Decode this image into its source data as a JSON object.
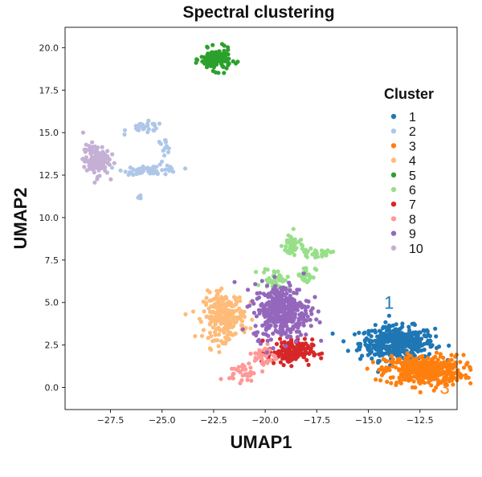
{
  "chart_data": {
    "type": "scatter",
    "title": "Spectral clustering",
    "xlabel": "UMAP1",
    "ylabel": "UMAP2",
    "xlim": [
      -29.7,
      -10.7
    ],
    "ylim": [
      -1.3,
      21.2
    ],
    "x_ticks": [
      -27.5,
      -25.0,
      -22.5,
      -20.0,
      -17.5,
      -15.0,
      -12.5
    ],
    "x_tick_labels": [
      "−27.5",
      "−25.0",
      "−22.5",
      "−20.0",
      "−17.5",
      "−15.0",
      "−12.5"
    ],
    "y_ticks": [
      0.0,
      2.5,
      5.0,
      7.5,
      10.0,
      12.5,
      15.0,
      17.5,
      20.0
    ],
    "y_tick_labels": [
      "0.0",
      "2.5",
      "5.0",
      "7.5",
      "10.0",
      "12.5",
      "15.0",
      "17.5",
      "20.0"
    ],
    "grid": false,
    "legend": {
      "title": "Cluster",
      "position": "right"
    },
    "series": [
      {
        "name": "1",
        "color": "#1f77b4",
        "clusters": [
          {
            "cx": -13.6,
            "cy": 2.6,
            "sx": 1.0,
            "sy": 0.55,
            "n": 420
          }
        ]
      },
      {
        "name": "2",
        "color": "#aec7e8",
        "clusters": [
          {
            "cx": -25.8,
            "cy": 15.3,
            "sx": 0.5,
            "sy": 0.18,
            "n": 30
          },
          {
            "cx": -25.5,
            "cy": 12.8,
            "sx": 0.75,
            "sy": 0.15,
            "n": 60
          },
          {
            "cx": -24.9,
            "cy": 14.2,
            "sx": 0.2,
            "sy": 0.25,
            "n": 14
          },
          {
            "cx": -26.1,
            "cy": 11.3,
            "sx": 0.08,
            "sy": 0.1,
            "n": 4
          }
        ]
      },
      {
        "name": "3",
        "color": "#ff7f0e",
        "clusters": [
          {
            "cx": -12.3,
            "cy": 1.0,
            "sx": 1.05,
            "sy": 0.5,
            "n": 420
          }
        ]
      },
      {
        "name": "4",
        "color": "#ffbb78",
        "clusters": [
          {
            "cx": -22.0,
            "cy": 4.2,
            "sx": 0.55,
            "sy": 0.75,
            "n": 240
          }
        ]
      },
      {
        "name": "5",
        "color": "#2ca02c",
        "clusters": [
          {
            "cx": -22.4,
            "cy": 19.3,
            "sx": 0.4,
            "sy": 0.35,
            "n": 140
          }
        ]
      },
      {
        "name": "6",
        "color": "#98df8a",
        "clusters": [
          {
            "cx": -18.7,
            "cy": 8.4,
            "sx": 0.25,
            "sy": 0.4,
            "n": 40
          },
          {
            "cx": -17.6,
            "cy": 7.9,
            "sx": 0.45,
            "sy": 0.12,
            "n": 30
          },
          {
            "cx": -19.5,
            "cy": 6.4,
            "sx": 0.35,
            "sy": 0.35,
            "n": 40
          },
          {
            "cx": -18.0,
            "cy": 6.6,
            "sx": 0.25,
            "sy": 0.3,
            "n": 30
          }
        ]
      },
      {
        "name": "7",
        "color": "#d62728",
        "clusters": [
          {
            "cx": -18.8,
            "cy": 2.1,
            "sx": 0.6,
            "sy": 0.4,
            "n": 160
          }
        ]
      },
      {
        "name": "8",
        "color": "#ff9896",
        "clusters": [
          {
            "cx": -21.1,
            "cy": 0.9,
            "sx": 0.35,
            "sy": 0.3,
            "n": 35
          },
          {
            "cx": -20.0,
            "cy": 1.8,
            "sx": 0.3,
            "sy": 0.4,
            "n": 35
          }
        ]
      },
      {
        "name": "9",
        "color": "#9467bd",
        "clusters": [
          {
            "cx": -19.2,
            "cy": 4.5,
            "sx": 0.75,
            "sy": 0.9,
            "n": 380
          }
        ]
      },
      {
        "name": "10",
        "color": "#c5b0d5",
        "clusters": [
          {
            "cx": -28.2,
            "cy": 13.4,
            "sx": 0.35,
            "sy": 0.5,
            "n": 120
          }
        ]
      }
    ],
    "annotations": [
      {
        "text": "1",
        "x": -14.0,
        "y": 5.0,
        "color": "#1f77b4"
      },
      {
        "text": "3",
        "x": -11.3,
        "y": 0.0,
        "color": "#ff7f0e"
      }
    ]
  }
}
